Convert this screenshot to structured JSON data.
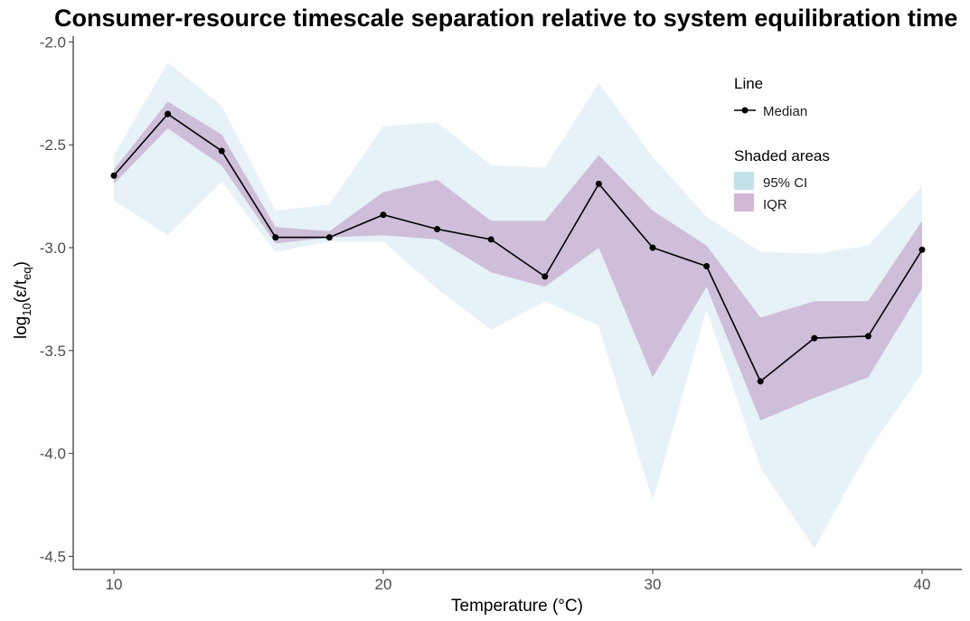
{
  "chart_data": {
    "type": "line",
    "title": "Consumer-resource timescale separation relative to system equilibration time",
    "xlabel": "Temperature (°C)",
    "ylabel": "log10(ε/teq)",
    "xlim": [
      8.5,
      41.5
    ],
    "ylim": [
      -4.55,
      -1.98
    ],
    "x_ticks": [
      10,
      20,
      30,
      40
    ],
    "x_tick_labels": [
      "10",
      "20",
      "30",
      "40"
    ],
    "y_ticks": [
      -2.0,
      -2.5,
      -3.0,
      -3.5,
      -4.0,
      -4.5
    ],
    "y_tick_labels": [
      "-2.0",
      "-2.5",
      "-3.0",
      "-3.5",
      "-4.0",
      "-4.5"
    ],
    "grid": false,
    "legend_position": "top-right",
    "x": [
      10,
      12,
      14,
      16,
      18,
      20,
      22,
      24,
      26,
      28,
      30,
      32,
      34,
      36,
      38,
      40
    ],
    "series": [
      {
        "name": "Median",
        "kind": "line",
        "color": "#000000",
        "values": [
          -2.65,
          -2.35,
          -2.53,
          -2.95,
          -2.95,
          -2.84,
          -2.91,
          -2.96,
          -3.14,
          -2.69,
          -3.0,
          -3.09,
          -3.65,
          -3.44,
          -3.43,
          -3.01
        ]
      },
      {
        "name": "95% CI",
        "kind": "band",
        "color": "#cfe3f1",
        "lower": [
          -2.77,
          -2.94,
          -2.68,
          -3.02,
          -2.97,
          -2.97,
          -3.2,
          -3.4,
          -3.26,
          -3.38,
          -4.23,
          -3.3,
          -4.07,
          -4.46,
          -3.99,
          -3.61
        ],
        "upper": [
          -2.55,
          -2.1,
          -2.31,
          -2.82,
          -2.79,
          -2.41,
          -2.39,
          -2.6,
          -2.61,
          -2.2,
          -2.56,
          -2.85,
          -3.02,
          -3.03,
          -2.99,
          -2.7
        ]
      },
      {
        "name": "IQR",
        "kind": "band",
        "color": "#c8b1d1",
        "lower": [
          -2.69,
          -2.42,
          -2.6,
          -2.98,
          -2.95,
          -2.94,
          -2.96,
          -3.12,
          -3.19,
          -3.0,
          -3.63,
          -3.19,
          -3.84,
          -3.73,
          -3.63,
          -3.2
        ],
        "upper": [
          -2.62,
          -2.29,
          -2.45,
          -2.9,
          -2.92,
          -2.73,
          -2.67,
          -2.87,
          -2.87,
          -2.55,
          -2.82,
          -2.99,
          -3.34,
          -3.26,
          -3.26,
          -2.87
        ]
      }
    ],
    "legend": {
      "line_title": "Line",
      "line_items": [
        "Median"
      ],
      "shade_title": "Shaded areas",
      "shade_items": [
        {
          "label": "95% CI",
          "color": "#c4e1ea"
        },
        {
          "label": "IQR",
          "color": "#d4b7d4"
        }
      ]
    }
  }
}
